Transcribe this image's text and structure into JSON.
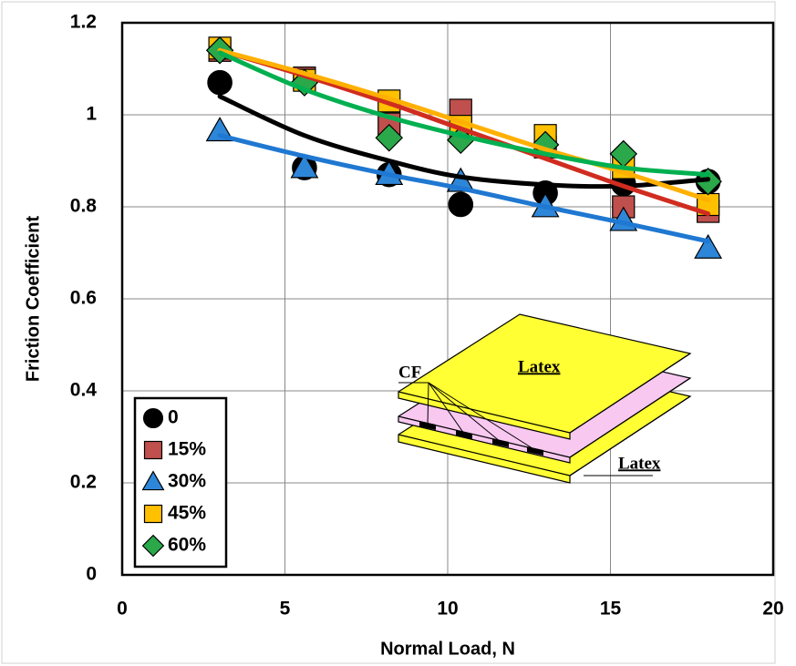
{
  "chart_data": {
    "type": "scatter",
    "xlabel": "Normal Load, N",
    "ylabel": "Friction Coefficient",
    "x": [
      3,
      5.6,
      8.2,
      10.4,
      13,
      15.4,
      18
    ],
    "xlim": [
      0,
      20
    ],
    "xticks": [
      0,
      5,
      10,
      15,
      20
    ],
    "ylim": [
      0,
      1.2
    ],
    "yticks": [
      0,
      0.2,
      0.4,
      0.6,
      0.8,
      1,
      1.2
    ],
    "grid": true,
    "legend": "lower left",
    "series": [
      {
        "name": "0",
        "marker": "circle",
        "color": "#000000",
        "line_color": "#000000",
        "values": [
          1.07,
          0.885,
          0.87,
          0.805,
          0.83,
          0.85,
          0.855
        ],
        "fit": [
          1.04,
          0.955,
          0.9,
          0.865,
          0.848,
          0.845,
          0.86
        ]
      },
      {
        "name": "15%",
        "marker": "square",
        "color": "#c0504d",
        "line_color": "#d02c1f",
        "values": [
          1.14,
          1.08,
          0.98,
          1.01,
          0.93,
          0.8,
          0.79
        ],
        "fit": [
          1.14,
          1.085,
          1.025,
          0.97,
          0.905,
          0.845,
          0.785
        ]
      },
      {
        "name": "30%",
        "marker": "triangle",
        "color": "#2e86d8",
        "line_color": "#1f78d1",
        "values": [
          0.965,
          0.885,
          0.87,
          0.855,
          0.8,
          0.77,
          0.71
        ],
        "fit": [
          0.955,
          0.91,
          0.87,
          0.84,
          0.8,
          0.765,
          0.725
        ]
      },
      {
        "name": "45%",
        "marker": "square",
        "color": "#ffc000",
        "line_color": "#ffb000",
        "values": [
          1.145,
          1.075,
          1.03,
          0.975,
          0.955,
          0.885,
          0.805
        ],
        "fit": [
          1.14,
          1.09,
          1.035,
          0.985,
          0.925,
          0.875,
          0.815
        ]
      },
      {
        "name": "60%",
        "marker": "diamond",
        "color": "#2aa84a",
        "line_color": "#00b050",
        "values": [
          1.14,
          1.07,
          0.95,
          0.945,
          0.935,
          0.915,
          0.855
        ],
        "fit": [
          1.135,
          1.055,
          0.995,
          0.955,
          0.915,
          0.885,
          0.87
        ]
      }
    ],
    "annotations": [
      "CF",
      "Latex",
      "Latex"
    ]
  }
}
